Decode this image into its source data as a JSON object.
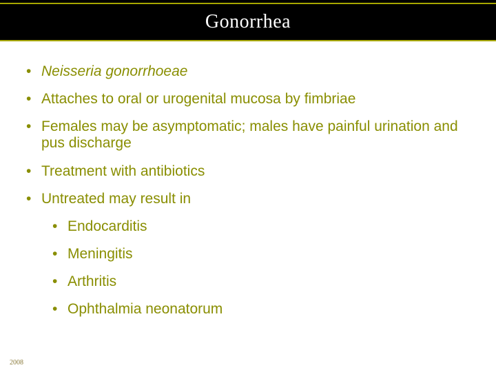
{
  "slide": {
    "title": "Gonorrhea",
    "title_color": "#ffffff",
    "title_bg": "#000000",
    "accent_line_color": "#a8a800",
    "bullet_color": "#898e01",
    "title_fontsize": 28,
    "body_fontsize": 21,
    "bullets_l1": [
      {
        "text": "Neisseria gonorrhoeae",
        "italic": true
      },
      {
        "text": "Attaches to oral or urogenital mucosa by fimbriae",
        "italic": false
      },
      {
        "text": "Females may be asymptomatic; males have painful urination and pus discharge",
        "italic": false
      },
      {
        "text": "Treatment with antibiotics",
        "italic": false
      },
      {
        "text": "Untreated may result in",
        "italic": false
      }
    ],
    "bullets_l2": [
      "Endocarditis",
      "Meningitis",
      "Arthritis",
      "Ophthalmia neonatorum"
    ],
    "footer": "2008",
    "background_color": "#ffffff"
  }
}
